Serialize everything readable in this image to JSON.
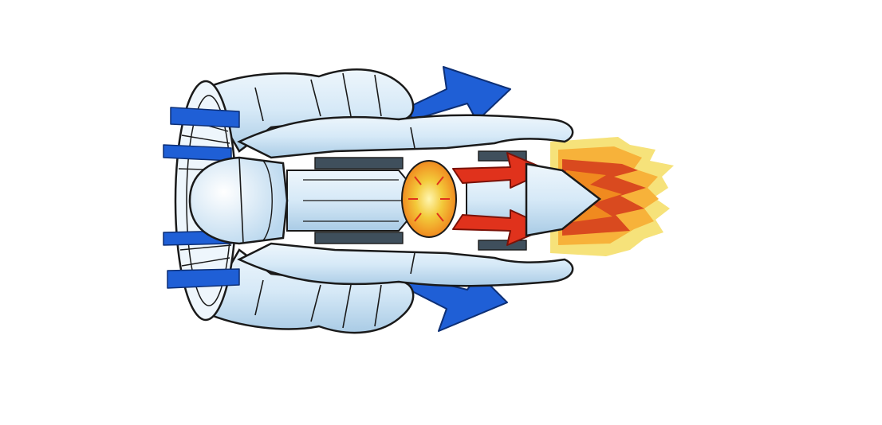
{
  "diagram": {
    "subject": "turbofan-jet-engine-cutaway",
    "colors": {
      "background": "#ffffff",
      "outline": "#1a1a1a",
      "casing": "#d6e9f7",
      "casing_light": "#eef6fc",
      "casing_shadow": "#9fc4e0",
      "bypass_air": "#1f5fd6",
      "combustion_core": "#f3c93a",
      "combustion_glow": "#f08a1f",
      "hot_gas": "#e0321c",
      "exhaust_outer": "#f7b23a",
      "exhaust_inner": "#d94a1f",
      "exhaust_yellow": "#f6e27a"
    }
  }
}
